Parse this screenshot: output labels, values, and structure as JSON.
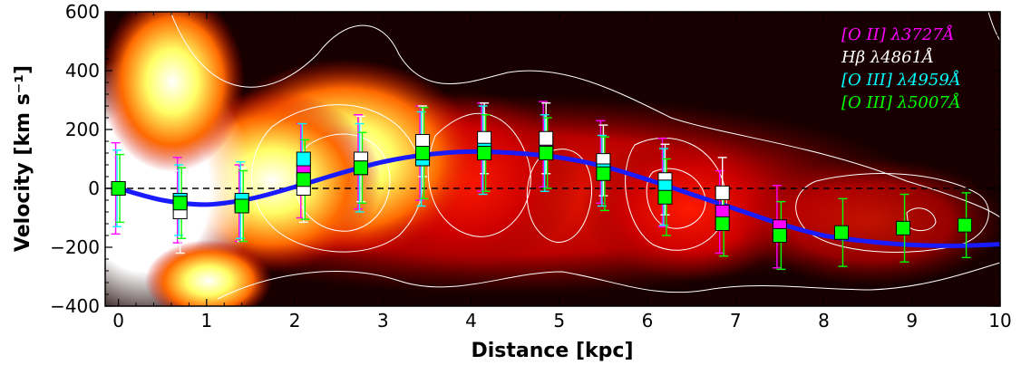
{
  "chart_data": {
    "type": "scatter",
    "xlabel": "Distance [kpc]",
    "ylabel": "Velocity [km s⁻¹]",
    "xlim": [
      -0.15,
      10
    ],
    "ylim": [
      -400,
      600
    ],
    "xticks": [
      "0",
      "1",
      "2",
      "3",
      "4",
      "5",
      "6",
      "7",
      "8",
      "9",
      "10"
    ],
    "yticks": [
      "−400",
      "−200",
      "0",
      "200",
      "400",
      "600"
    ],
    "grid": false,
    "legend_position": "top-right",
    "reference_line": {
      "y": 0,
      "style": "dashed",
      "color": "#000000"
    },
    "background": "red-yellow-white intensity map with white contours",
    "model_curve": {
      "color": "#1a1aff",
      "x": [
        0,
        0.5,
        1,
        1.5,
        2,
        2.5,
        3,
        3.5,
        4,
        4.5,
        5,
        5.5,
        6,
        6.5,
        7,
        7.5,
        8,
        8.5,
        9,
        9.5,
        10
      ],
      "y": [
        0,
        -40,
        -55,
        -35,
        5,
        50,
        90,
        115,
        125,
        120,
        105,
        75,
        30,
        -20,
        -70,
        -120,
        -160,
        -180,
        -192,
        -195,
        -190
      ]
    },
    "series": [
      {
        "name": "[O II] λ3727Å",
        "color": "#ff00ff",
        "x": [
          0,
          0.7,
          1.4,
          2.1,
          2.75,
          3.45,
          4.15,
          4.85,
          5.5,
          6.2,
          6.85,
          7.5
        ],
        "y": [
          0,
          -40,
          -50,
          60,
          90,
          120,
          140,
          150,
          90,
          20,
          -80,
          -130
        ],
        "err": [
          155,
          145,
          130,
          160,
          160,
          160,
          150,
          145,
          140,
          150,
          140,
          140
        ]
      },
      {
        "name": "Hβ λ4861Å",
        "color": "#ffffff",
        "x": [
          0,
          0.7,
          1.4,
          2.1,
          2.75,
          3.45,
          4.15,
          4.85,
          5.5,
          6.2,
          6.85
        ],
        "y": [
          0,
          -80,
          -55,
          0,
          100,
          160,
          170,
          170,
          95,
          30,
          -15
        ],
        "err": [
          130,
          140,
          125,
          115,
          145,
          120,
          120,
          120,
          120,
          120,
          120
        ]
      },
      {
        "name": "[O III] λ4959Å",
        "color": "#00ffff",
        "x": [
          0,
          0.7,
          1.4,
          2.1,
          2.75,
          3.45,
          4.15,
          4.85,
          5.5,
          6.2
        ],
        "y": [
          0,
          -40,
          -40,
          100,
          70,
          100,
          130,
          120,
          60,
          5
        ],
        "err": [
          130,
          120,
          130,
          120,
          150,
          160,
          150,
          130,
          120,
          130
        ]
      },
      {
        "name": "[O III] λ5007Å",
        "color": "#00ff00",
        "x": [
          0,
          0.7,
          1.4,
          2.1,
          2.75,
          3.45,
          4.15,
          4.85,
          5.5,
          6.2,
          6.85,
          7.5,
          8.2,
          8.9,
          9.6
        ],
        "y": [
          0,
          -50,
          -60,
          30,
          70,
          120,
          120,
          120,
          50,
          -30,
          -120,
          -160,
          -150,
          -135,
          -125
        ],
        "err": [
          115,
          120,
          120,
          135,
          120,
          155,
          130,
          120,
          125,
          130,
          110,
          115,
          115,
          115,
          110
        ]
      }
    ]
  }
}
